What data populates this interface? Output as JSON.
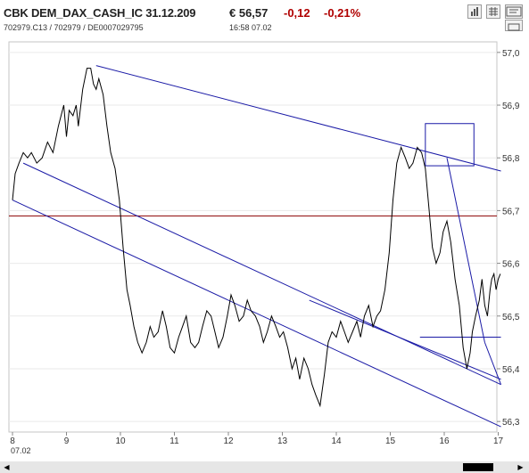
{
  "header": {
    "title": "CBK DEM_DAX_CASH_IC 31.12.209",
    "price": "€ 56,57",
    "change": "-0,12",
    "change_pct": "-0,21%",
    "ids": "702979.C13  /  702979  /  DE0007029795",
    "time": "16:58   07.02",
    "tool_icons": [
      "bar-chart-icon",
      "grid-icon",
      "export-icon",
      "resize-icon"
    ]
  },
  "colors": {
    "price_line": "#000000",
    "trend_lines": "#1a1aa6",
    "reference_line": "#8b0000",
    "negative": "#b00000"
  },
  "chart_data": {
    "type": "line",
    "x_ticks": [
      "8",
      "9",
      "10",
      "11",
      "12",
      "13",
      "14",
      "15",
      "16",
      "17"
    ],
    "x_sublabel": "07.02",
    "y_ticks": [
      "57,0",
      "56,9",
      "56,8",
      "56,7",
      "56,6",
      "56,5",
      "56,4",
      "56,3"
    ],
    "ylim": [
      56.28,
      57.02
    ],
    "xlim": [
      8.0,
      17.1
    ],
    "reference_level": 56.69,
    "series": [
      {
        "x": [
          8.0,
          8.05,
          8.12,
          8.2,
          8.28,
          8.35,
          8.45,
          8.55,
          8.65,
          8.75,
          8.85,
          8.95,
          9.0,
          9.05,
          9.12,
          9.18,
          9.22,
          9.3,
          9.38,
          9.45,
          9.5,
          9.55,
          9.6,
          9.68,
          9.75,
          9.82,
          9.9,
          9.98,
          10.05,
          10.12,
          10.18,
          10.25,
          10.32,
          10.4,
          10.48,
          10.55,
          10.62,
          10.7,
          10.78,
          10.85,
          10.92,
          11.0,
          11.08,
          11.15,
          11.22,
          11.3,
          11.38,
          11.45,
          11.52,
          11.6,
          11.68,
          11.75,
          11.82,
          11.9,
          11.98,
          12.05,
          12.12,
          12.2,
          12.28,
          12.35,
          12.42,
          12.5,
          12.58,
          12.65,
          12.72,
          12.8,
          12.88,
          12.95,
          13.02,
          13.1,
          13.18,
          13.25,
          13.32,
          13.4,
          13.48,
          13.55,
          13.62,
          13.7,
          13.78,
          13.85,
          13.92,
          14.0,
          14.08,
          14.15,
          14.22,
          14.3,
          14.38,
          14.45,
          14.52,
          14.6,
          14.68,
          14.75,
          14.82,
          14.9,
          14.98,
          15.05,
          15.12,
          15.2,
          15.28,
          15.35,
          15.42,
          15.5,
          15.58,
          15.65,
          15.72,
          15.78,
          15.85,
          15.92,
          15.98,
          16.05,
          16.12,
          16.2,
          16.28,
          16.35,
          16.42,
          16.48,
          16.52,
          16.58,
          16.65,
          16.7,
          16.75,
          16.8,
          16.85,
          16.88,
          16.92,
          16.96,
          17.0,
          17.04
        ],
        "y": [
          56.72,
          56.77,
          56.79,
          56.81,
          56.8,
          56.81,
          56.79,
          56.8,
          56.83,
          56.81,
          56.86,
          56.9,
          56.84,
          56.89,
          56.88,
          56.9,
          56.86,
          56.93,
          56.97,
          56.97,
          56.94,
          56.93,
          56.95,
          56.92,
          56.86,
          56.81,
          56.78,
          56.72,
          56.63,
          56.55,
          56.52,
          56.48,
          56.45,
          56.43,
          56.45,
          56.48,
          56.46,
          56.47,
          56.51,
          56.48,
          56.44,
          56.43,
          56.46,
          56.48,
          56.5,
          56.45,
          56.44,
          56.45,
          56.48,
          56.51,
          56.5,
          56.47,
          56.44,
          56.46,
          56.5,
          56.54,
          56.52,
          56.49,
          56.5,
          56.53,
          56.51,
          56.5,
          56.48,
          56.45,
          56.47,
          56.5,
          56.48,
          56.46,
          56.47,
          56.44,
          56.4,
          56.42,
          56.38,
          56.42,
          56.4,
          56.37,
          56.35,
          56.33,
          56.39,
          56.45,
          56.47,
          56.46,
          56.49,
          56.47,
          56.45,
          56.47,
          56.49,
          56.46,
          56.5,
          56.52,
          56.48,
          56.5,
          56.51,
          56.55,
          56.62,
          56.72,
          56.79,
          56.82,
          56.8,
          56.78,
          56.79,
          56.82,
          56.81,
          56.78,
          56.7,
          56.63,
          56.6,
          56.62,
          56.66,
          56.68,
          56.64,
          56.57,
          56.52,
          56.44,
          56.4,
          56.43,
          56.47,
          56.5,
          56.53,
          56.57,
          56.52,
          56.5,
          56.55,
          56.57,
          56.58,
          56.55,
          56.57,
          56.58
        ]
      }
    ],
    "trend_lines": [
      [
        [
          9.55,
          56.975
        ],
        [
          17.05,
          56.775
        ]
      ],
      [
        [
          8.2,
          56.79
        ],
        [
          17.05,
          56.37
        ]
      ],
      [
        [
          8.0,
          56.72
        ],
        [
          17.05,
          56.29
        ]
      ],
      [
        [
          13.5,
          56.53
        ],
        [
          17.05,
          56.38
        ]
      ],
      [
        [
          16.05,
          56.8
        ],
        [
          16.75,
          56.45
        ]
      ],
      [
        [
          16.75,
          56.45
        ],
        [
          17.05,
          56.37
        ]
      ]
    ],
    "rectangles": [
      [
        [
          15.65,
          56.785
        ],
        [
          16.55,
          56.865
        ]
      ],
      [
        [
          15.55,
          56.46
        ],
        [
          17.05,
          56.46
        ]
      ]
    ]
  }
}
